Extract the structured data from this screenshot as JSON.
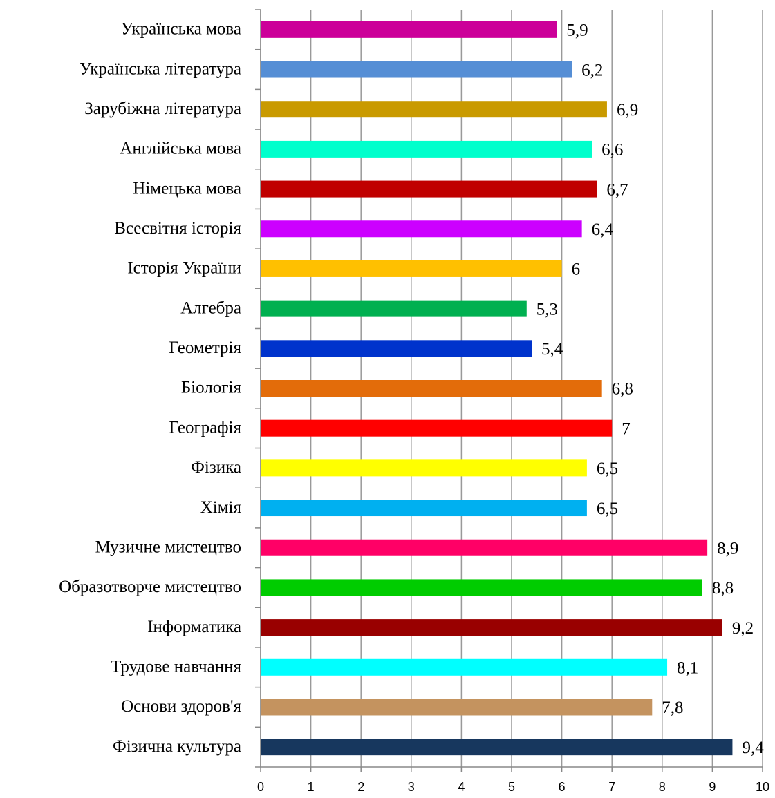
{
  "chart_data": {
    "type": "barh",
    "categories": [
      "Українська мова",
      "Українська література",
      "Зарубіжна література",
      "Англійська мова",
      "Німецька  мова",
      "Всесвітня історія",
      "Історія України",
      "Алгебра",
      "Геометрія",
      "Біологія",
      "Географія",
      "Фізика",
      "Хімія",
      "Музичне мистецтво",
      "Образотворче мистецтво",
      "Інформатика",
      "Трудове навчання",
      "Основи здоров'я",
      "Фізична культура"
    ],
    "values": [
      5.9,
      6.2,
      6.9,
      6.6,
      6.7,
      6.4,
      6,
      5.3,
      5.4,
      6.8,
      7,
      6.5,
      6.5,
      8.9,
      8.8,
      9.2,
      8.1,
      7.8,
      9.4
    ],
    "value_labels": [
      "5,9",
      "6,2",
      "6,9",
      "6,6",
      "6,7",
      "6,4",
      "6",
      "5,3",
      "5,4",
      "6,8",
      "7",
      "6,5",
      "6,5",
      "8,9",
      "8,8",
      "9,2",
      "8,1",
      "7,8",
      "9,4"
    ],
    "colors": [
      "#cc0099",
      "#558ed5",
      "#c99a00",
      "#00ffcc",
      "#c00000",
      "#cc00ff",
      "#ffc000",
      "#00b050",
      "#0033cc",
      "#e36c0a",
      "#ff0000",
      "#ffff00",
      "#00b0f0",
      "#ff0066",
      "#00cc00",
      "#990000",
      "#00ffff",
      "#c4935f",
      "#17375e"
    ],
    "xlim": [
      0,
      10
    ],
    "xticks": [
      0,
      1,
      2,
      3,
      4,
      5,
      6,
      7,
      8,
      9,
      10
    ],
    "grid": true
  }
}
